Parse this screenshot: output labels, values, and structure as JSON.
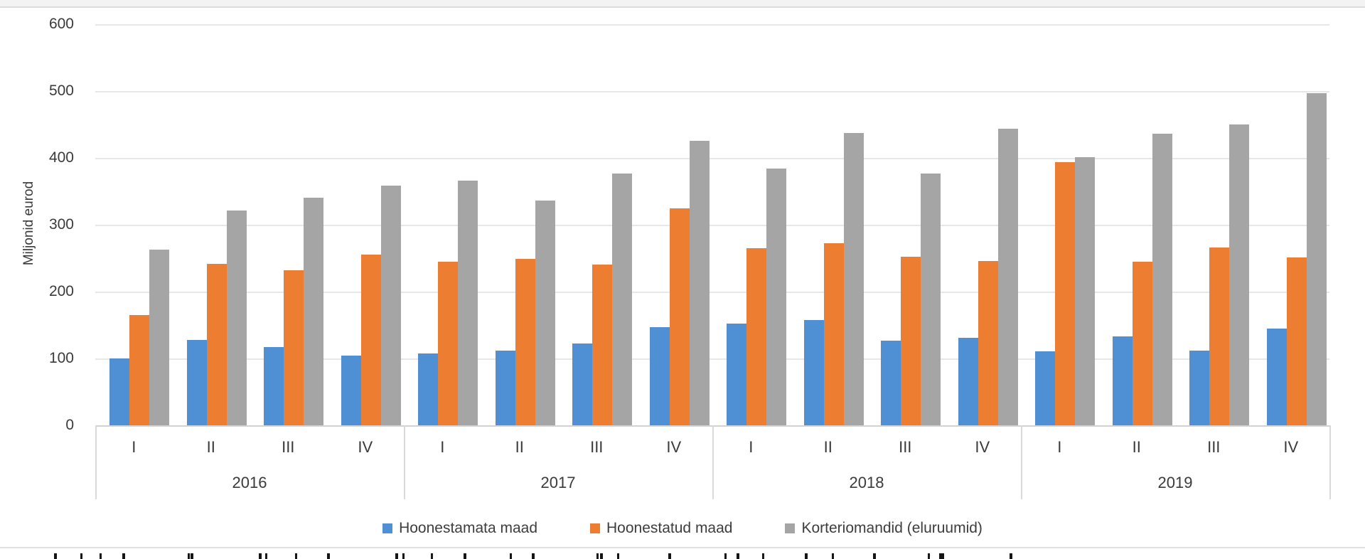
{
  "chart_data": {
    "type": "bar",
    "title": "",
    "xlabel": "",
    "ylabel": "Miljonid eurod",
    "ylim": [
      0,
      600
    ],
    "ytick_labels": [
      "0",
      "100",
      "200",
      "300",
      "400",
      "500",
      "600"
    ],
    "grid": true,
    "legend_position": "bottom",
    "year_labels": [
      "2016",
      "2017",
      "2018",
      "2019"
    ],
    "quarter_labels": [
      "I",
      "II",
      "III",
      "IV"
    ],
    "categories": [
      "2016-I",
      "2016-II",
      "2016-III",
      "2016-IV",
      "2017-I",
      "2017-II",
      "2017-III",
      "2017-IV",
      "2018-I",
      "2018-II",
      "2018-III",
      "2018-IV",
      "2019-I",
      "2019-II",
      "2019-III",
      "2019-IV"
    ],
    "series": [
      {
        "name": "Hoonestamata maad",
        "slug": "hoonestamata-maad",
        "color": "#4E90D3",
        "values": [
          100,
          128,
          117,
          104,
          107,
          112,
          122,
          147,
          152,
          157,
          127,
          131,
          111,
          133,
          112,
          145
        ]
      },
      {
        "name": "Hoonestatud maad",
        "slug": "hoonestatud-maad",
        "color": "#ED7D31",
        "values": [
          165,
          242,
          232,
          255,
          245,
          249,
          240,
          325,
          265,
          272,
          252,
          246,
          394,
          245,
          266,
          251
        ]
      },
      {
        "name": "Korteriomandid (eluruumid)",
        "slug": "korteriomandid-eluruumid",
        "color": "#A5A5A5",
        "values": [
          263,
          321,
          340,
          358,
          366,
          336,
          377,
          426,
          384,
          437,
          377,
          444,
          401,
          436,
          450,
          497
        ]
      }
    ]
  }
}
